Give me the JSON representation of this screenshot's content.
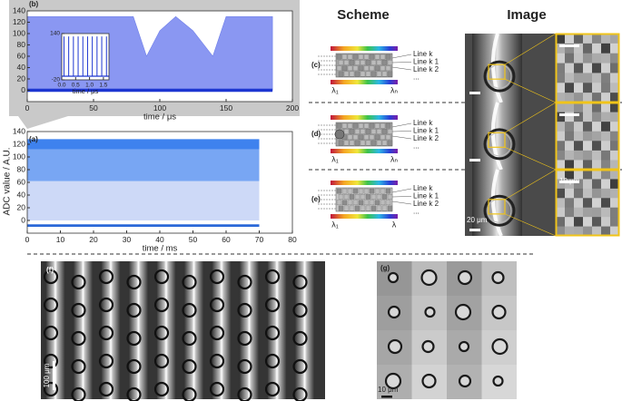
{
  "y_axis_label": "ADC value / A.U.",
  "chart_data": [
    {
      "type": "area",
      "panel_label": "(b)",
      "xlabel": "time / μs",
      "xlim": [
        0,
        200
      ],
      "xticks": [
        0,
        50,
        100,
        150,
        200
      ],
      "ylim": [
        -20,
        140
      ],
      "yticks": [
        0,
        20,
        40,
        60,
        80,
        100,
        120,
        140
      ],
      "series": [
        {
          "style": "area",
          "color": "#8a97f2",
          "x": [
            0,
            80,
            90,
            100,
            112,
            125,
            140,
            150,
            185
          ],
          "values": [
            130,
            130,
            60,
            105,
            130,
            105,
            60,
            130,
            130
          ]
        },
        {
          "style": "line",
          "color": "#1d36d1",
          "x": [
            0,
            185
          ],
          "values": [
            0,
            0
          ]
        }
      ]
    },
    {
      "type": "spike",
      "xlabel": "time / μs",
      "xlim": [
        0,
        1.7
      ],
      "xticks": [
        {
          "value": 0,
          "label": "0.0"
        },
        0.5,
        {
          "value": 1,
          "label": "1.0"
        },
        1.5
      ],
      "ylim": [
        -20,
        140
      ],
      "yticks": [
        -20,
        140
      ],
      "series": [
        {
          "style": "spike",
          "color": "#1d36d1",
          "x": [
            0.08,
            0.25,
            0.42,
            0.59,
            0.76,
            0.93,
            1.1,
            1.27,
            1.44,
            1.61
          ],
          "values": [
            130,
            130,
            130,
            130,
            130,
            130,
            130,
            130,
            130,
            130
          ]
        }
      ]
    },
    {
      "type": "area",
      "panel_label": "(a)",
      "xlabel": "time / ms",
      "xlim": [
        0,
        80
      ],
      "xticks": [
        0,
        10,
        20,
        30,
        40,
        50,
        60,
        70,
        80
      ],
      "ylim": [
        -20,
        140
      ],
      "yticks": [
        0,
        20,
        40,
        60,
        80,
        100,
        120,
        140
      ],
      "series": [
        {
          "style": "band",
          "color": "#cdd9f7",
          "x": [
            0,
            70
          ],
          "values": [
            62,
            62
          ],
          "lower": [
            0,
            0
          ]
        },
        {
          "style": "band",
          "color": "#78a6f3",
          "x": [
            0,
            70
          ],
          "values": [
            112,
            112
          ],
          "lower": [
            62,
            62
          ]
        },
        {
          "style": "band",
          "color": "#3e82ee",
          "x": [
            0,
            70
          ],
          "values": [
            128,
            128
          ],
          "lower": [
            112,
            112
          ]
        },
        {
          "style": "band",
          "color": "#2a68d8",
          "x": [
            0,
            70
          ],
          "values": [
            -6,
            -6
          ],
          "lower": [
            -10,
            -10
          ]
        }
      ]
    }
  ],
  "scheme": {
    "title": "Scheme",
    "lines": [
      "Line k",
      "Line k 1",
      "Line k 2",
      "..."
    ],
    "rows": [
      {
        "label": "(c)",
        "lambda_start": "λ₁",
        "lambda_end": "λₙ"
      },
      {
        "label": "(d)",
        "lambda_start": "λ₁",
        "lambda_end": "λₙ"
      },
      {
        "label": "(e)",
        "lambda_start": "λ₁",
        "lambda_end": "λ"
      }
    ]
  },
  "image": {
    "title": "Image",
    "scale_bar_main": "20 μm",
    "scale_bar_zoom": "10 μm"
  },
  "panel_f": {
    "label": "(f)",
    "scale_bar": "100 μm"
  },
  "panel_g": {
    "label": "(g)",
    "scale_bar": "10 μm"
  }
}
